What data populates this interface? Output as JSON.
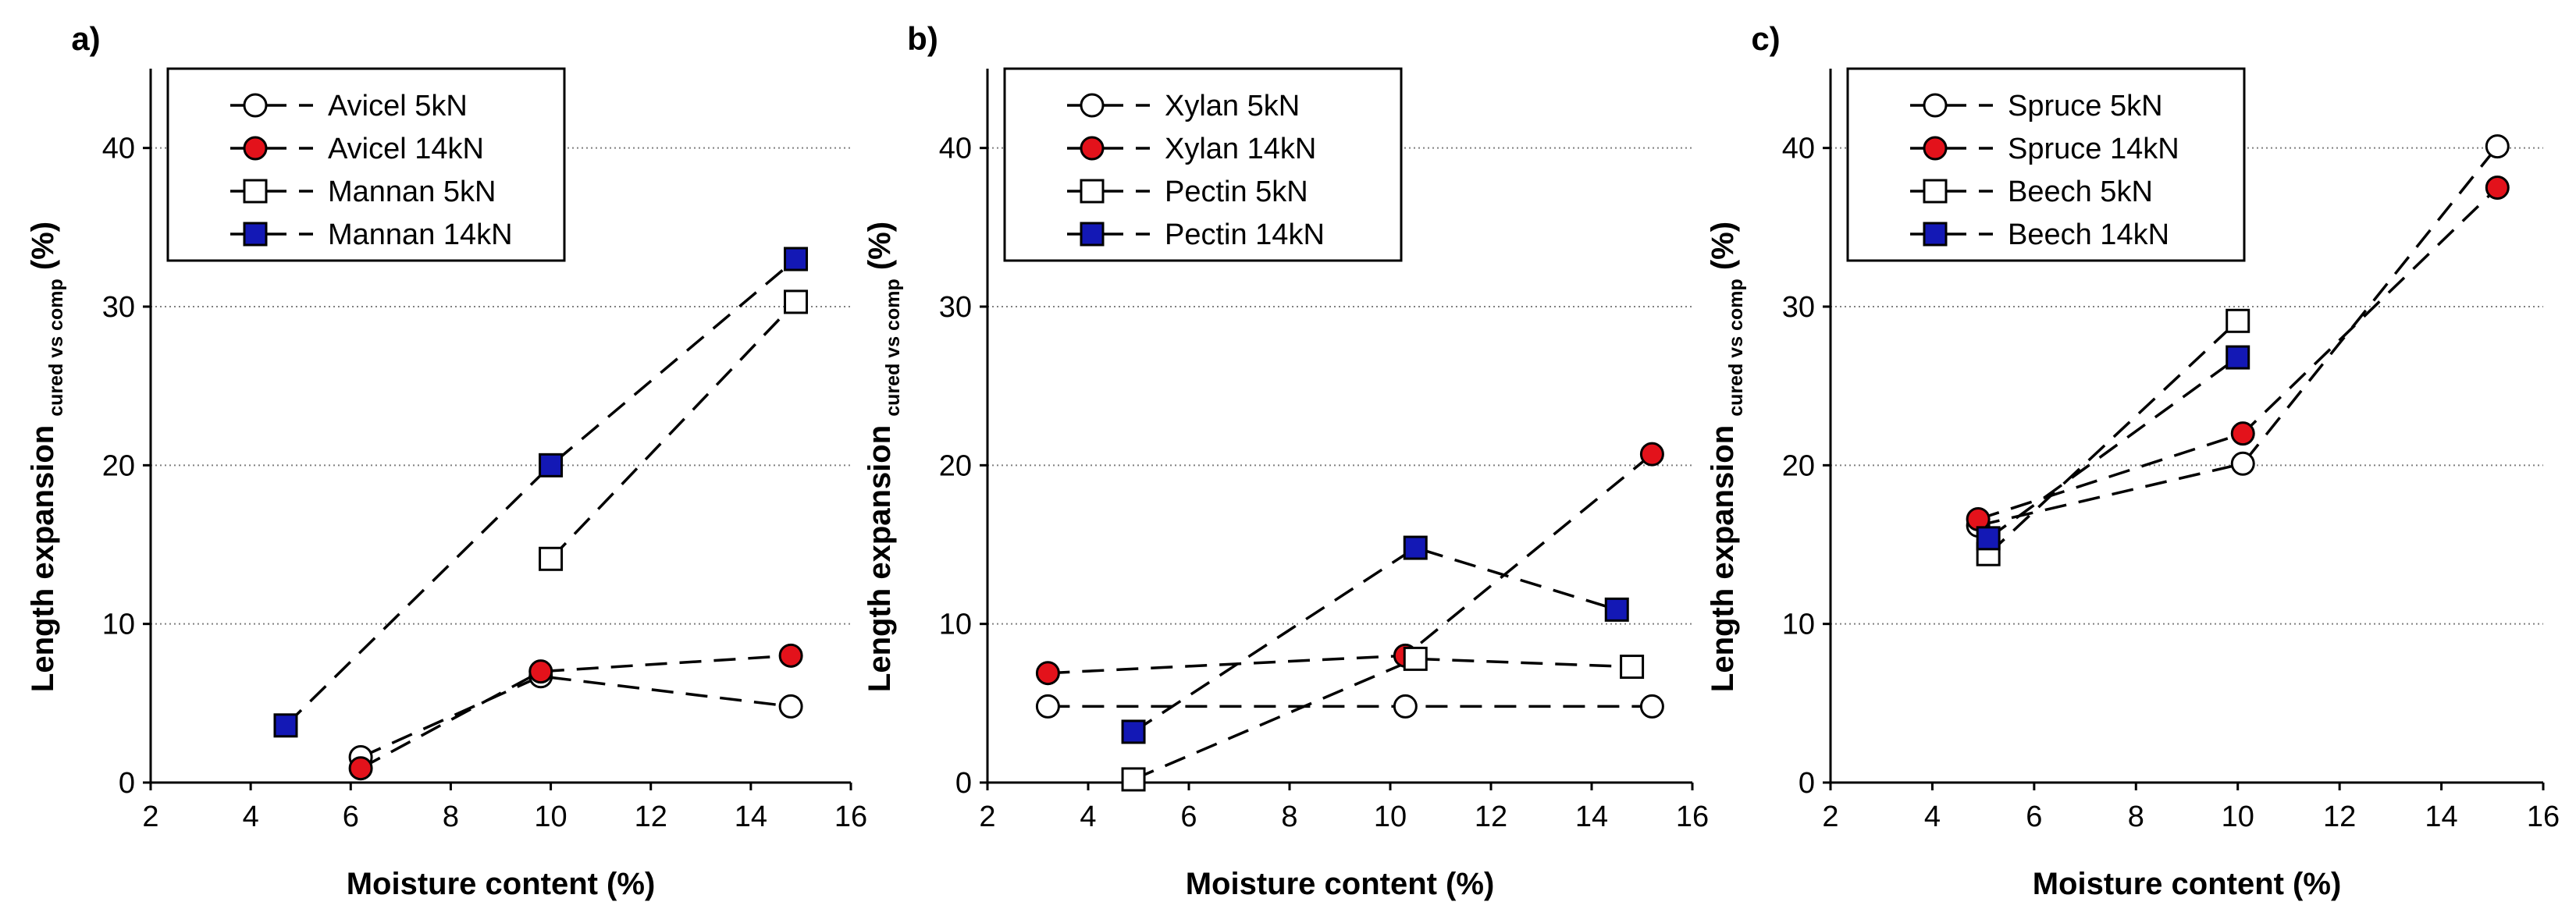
{
  "colors": {
    "red": "#e3121b",
    "blue": "#1318b5",
    "open": "#ffffff",
    "grid": "#808080"
  },
  "chart_data": [
    {
      "type": "line",
      "panel_label": "a)",
      "xlabel": "Moisture content (%)",
      "ylabel_main": "Length expansion",
      "ylabel_sub": "cured vs comp",
      "ylabel_unit": "(%)",
      "xlim": [
        2,
        16
      ],
      "ylim": [
        0,
        45
      ],
      "xticks": [
        2,
        4,
        6,
        8,
        10,
        12,
        14,
        16
      ],
      "yticks": [
        0,
        10,
        20,
        30,
        40
      ],
      "grid": "horizontal",
      "legend_position": "top-left",
      "series": [
        {
          "name": "Avicel 5kN",
          "marker": "circle",
          "fill": "open",
          "x": [
            6.2,
            9.8,
            14.8
          ],
          "y": [
            1.6,
            6.7,
            4.8
          ]
        },
        {
          "name": "Avicel 14kN",
          "marker": "circle",
          "fill": "red",
          "x": [
            6.2,
            9.8,
            14.8
          ],
          "y": [
            0.9,
            7.0,
            8.0
          ]
        },
        {
          "name": "Mannan 5kN",
          "marker": "square",
          "fill": "open",
          "x": [
            10.0,
            14.9
          ],
          "y": [
            14.1,
            30.3
          ]
        },
        {
          "name": "Mannan 14kN",
          "marker": "square",
          "fill": "blue",
          "x": [
            4.7,
            10.0,
            14.9
          ],
          "y": [
            3.6,
            20.0,
            33.0
          ]
        }
      ]
    },
    {
      "type": "line",
      "panel_label": "b)",
      "xlabel": "Moisture content (%)",
      "ylabel_main": "Length expansion",
      "ylabel_sub": "cured vs comp",
      "ylabel_unit": "(%)",
      "xlim": [
        2,
        16
      ],
      "ylim": [
        0,
        45
      ],
      "xticks": [
        2,
        4,
        6,
        8,
        10,
        12,
        14,
        16
      ],
      "yticks": [
        0,
        10,
        20,
        30,
        40
      ],
      "grid": "horizontal",
      "legend_position": "top-left",
      "series": [
        {
          "name": "Xylan 5kN",
          "marker": "circle",
          "fill": "open",
          "x": [
            3.2,
            10.3,
            15.2
          ],
          "y": [
            4.8,
            4.8,
            4.8
          ]
        },
        {
          "name": "Xylan 14kN",
          "marker": "circle",
          "fill": "red",
          "x": [
            3.2,
            10.3,
            15.2
          ],
          "y": [
            6.9,
            8.0,
            20.7
          ]
        },
        {
          "name": "Pectin 5kN",
          "marker": "square",
          "fill": "open",
          "x": [
            4.9,
            10.5,
            14.8
          ],
          "y": [
            0.2,
            7.8,
            7.3
          ]
        },
        {
          "name": "Pectin 14kN",
          "marker": "square",
          "fill": "blue",
          "x": [
            4.9,
            10.5,
            14.5
          ],
          "y": [
            3.2,
            14.8,
            10.9
          ]
        }
      ]
    },
    {
      "type": "line",
      "panel_label": "c)",
      "xlabel": "Moisture content (%)",
      "ylabel_main": "Length expansion",
      "ylabel_sub": "cured vs comp",
      "ylabel_unit": "(%)",
      "xlim": [
        2,
        16
      ],
      "ylim": [
        0,
        45
      ],
      "xticks": [
        2,
        4,
        6,
        8,
        10,
        12,
        14,
        16
      ],
      "yticks": [
        0,
        10,
        20,
        30,
        40
      ],
      "grid": "horizontal",
      "legend_position": "top-left",
      "series": [
        {
          "name": "Spruce 5kN",
          "marker": "circle",
          "fill": "open",
          "x": [
            4.9,
            10.1,
            15.1
          ],
          "y": [
            16.2,
            20.1,
            40.1
          ]
        },
        {
          "name": "Spruce 14kN",
          "marker": "circle",
          "fill": "red",
          "x": [
            4.9,
            10.1,
            15.1
          ],
          "y": [
            16.6,
            22.0,
            37.5
          ]
        },
        {
          "name": "Beech 5kN",
          "marker": "square",
          "fill": "open",
          "x": [
            5.1,
            10.0
          ],
          "y": [
            14.4,
            29.1
          ]
        },
        {
          "name": "Beech 14kN",
          "marker": "square",
          "fill": "blue",
          "x": [
            5.1,
            10.0
          ],
          "y": [
            15.4,
            26.8
          ]
        }
      ]
    }
  ]
}
